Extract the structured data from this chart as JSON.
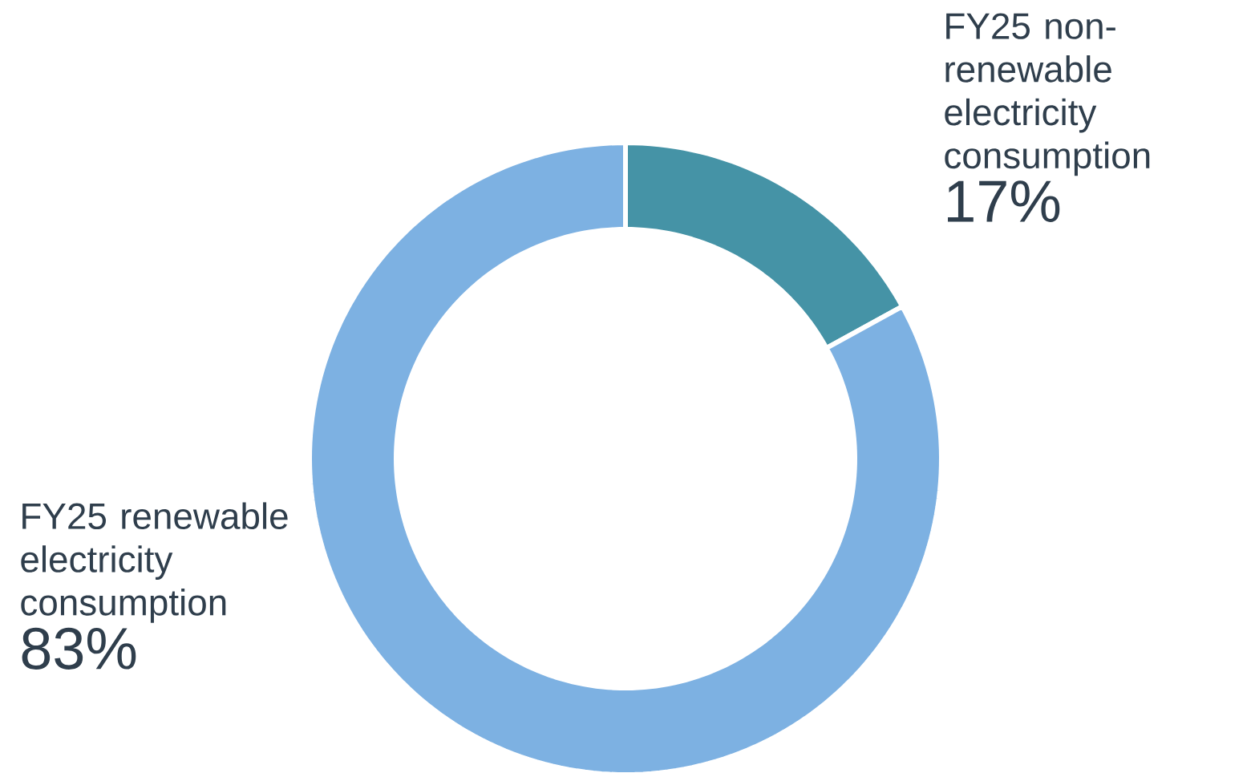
{
  "chart_data": {
    "type": "donut",
    "categories": [
      "FY25 non-renewable electricity consumption",
      "FY25 renewable electricity consumption"
    ],
    "values": [
      17,
      83
    ],
    "colors": [
      "#4593a6",
      "#7db1e2"
    ],
    "value_labels": [
      "17%",
      "83%"
    ]
  }
}
